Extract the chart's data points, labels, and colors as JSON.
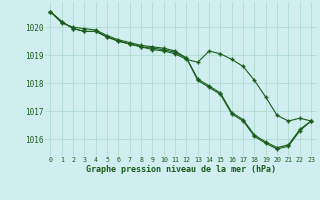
{
  "xlabel": "Graphe pression niveau de la mer (hPa)",
  "bg_color": "#d0eef0",
  "grid_color": "#a8d8cc",
  "line_color": "#1a5c1a",
  "xlim": [
    -0.5,
    23.5
  ],
  "ylim": [
    1015.4,
    1020.9
  ],
  "yticks": [
    1016,
    1017,
    1018,
    1019,
    1020
  ],
  "xticks": [
    0,
    1,
    2,
    3,
    4,
    5,
    6,
    7,
    8,
    9,
    10,
    11,
    12,
    13,
    14,
    15,
    16,
    17,
    18,
    19,
    20,
    21,
    22,
    23
  ],
  "line1": [
    1020.55,
    1020.2,
    1019.95,
    1019.85,
    1019.85,
    1019.65,
    1019.5,
    1019.4,
    1019.3,
    1019.2,
    1019.15,
    1019.05,
    1018.85,
    1018.75,
    1019.15,
    1019.05,
    1018.85,
    1018.6,
    1018.1,
    1017.5,
    1016.85,
    1016.65,
    1016.75,
    1016.65
  ],
  "line2": [
    1020.55,
    1020.2,
    1019.95,
    1019.85,
    1019.85,
    1019.65,
    1019.5,
    1019.4,
    1019.3,
    1019.25,
    1019.2,
    1019.1,
    1018.9,
    1018.1,
    1017.85,
    1017.6,
    1016.9,
    1016.65,
    1016.1,
    1015.85,
    1015.65,
    1015.75,
    1016.3,
    1016.65
  ],
  "line3": [
    1020.55,
    1020.15,
    1020.0,
    1019.95,
    1019.9,
    1019.7,
    1019.55,
    1019.45,
    1019.35,
    1019.3,
    1019.25,
    1019.15,
    1018.9,
    1018.15,
    1017.9,
    1017.65,
    1016.95,
    1016.7,
    1016.15,
    1015.9,
    1015.7,
    1015.8,
    1016.35,
    1016.65
  ]
}
